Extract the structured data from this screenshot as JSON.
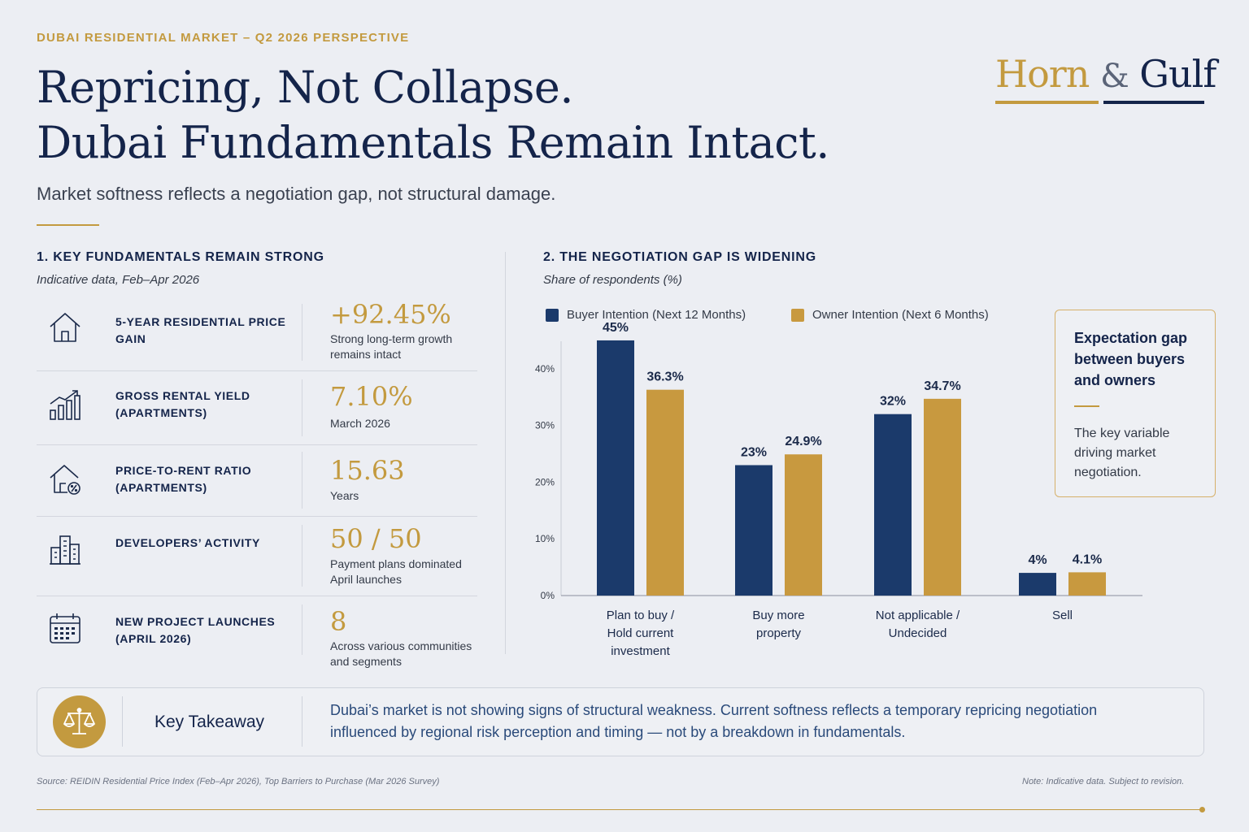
{
  "header": {
    "kicker": "DUBAI RESIDENTIAL MARKET – Q2 2026 PERSPECTIVE",
    "title_line1": "Repricing, Not Collapse.",
    "title_line2": "Dubai Fundamentals Remain Intact.",
    "subtitle": "Market softness reflects a negotiation gap, not structural damage.",
    "logo_word1": "Horn",
    "logo_amp": "&",
    "logo_word2": "Gulf"
  },
  "colors": {
    "navy": "#1b3a6b",
    "gold": "#c8993f",
    "background": "#eceef3"
  },
  "section1": {
    "title": "1. KEY FUNDAMENTALS REMAIN STRONG",
    "subtitle": "Indicative data, Feb–Apr 2026",
    "rows": [
      {
        "icon": "house-icon",
        "label": "5-YEAR RESIDENTIAL PRICE GAIN",
        "value": "+92.45%",
        "note": "Strong long-term growth remains intact"
      },
      {
        "icon": "growth-chart-icon",
        "label": "GROSS RENTAL YIELD (APARTMENTS)",
        "value": "7.10%",
        "note": "March 2026"
      },
      {
        "icon": "house-percent-icon",
        "label": "PRICE-TO-RENT RATIO (APARTMENTS)",
        "value": "15.63",
        "note": "Years"
      },
      {
        "icon": "buildings-icon",
        "label": "DEVELOPERS’ ACTIVITY",
        "value": "50 / 50",
        "note": "Payment plans dominated April launches"
      },
      {
        "icon": "calendar-icon",
        "label": "NEW PROJECT LAUNCHES (APRIL 2026)",
        "value": "8",
        "note": "Across various communities and segments"
      }
    ]
  },
  "section2": {
    "title": "2. THE NEGOTIATION GAP IS WIDENING",
    "subtitle": "Share of respondents (%)",
    "callout_title": "Expectation gap between buyers and owners",
    "callout_body": "The key variable driving market negotiation."
  },
  "chart_data": {
    "type": "bar",
    "categories": [
      [
        "Plan to buy /",
        "Hold current",
        "investment"
      ],
      [
        "Buy more",
        "property"
      ],
      [
        "Not applicable /",
        "Undecided"
      ],
      [
        "Sell"
      ]
    ],
    "series": [
      {
        "name": "Buyer Intention (Next 12 Months)",
        "values": [
          45,
          23,
          32,
          4
        ],
        "labels": [
          "45%",
          "23%",
          "32%",
          "4%"
        ],
        "color": "#1b3a6b"
      },
      {
        "name": "Owner Intention (Next 6 Months)",
        "values": [
          36.3,
          24.9,
          34.7,
          4.1
        ],
        "labels": [
          "36.3%",
          "24.9%",
          "34.7%",
          "4.1%"
        ],
        "color": "#c8993f"
      }
    ],
    "yticks": [
      "0%",
      "10%",
      "20%",
      "30%",
      "40%"
    ],
    "ylim": [
      0,
      47
    ],
    "legend": "top-left",
    "grid": false
  },
  "takeaway": {
    "icon": "scales-icon",
    "label": "Key Takeaway",
    "text": "Dubai’s market is not showing signs of structural weakness. Current softness reflects a temporary repricing negotiation influenced by regional risk perception and timing — not by a breakdown in fundamentals."
  },
  "footer": {
    "source": "Source: REIDIN Residential Price Index (Feb–Apr 2026), Top Barriers to Purchase (Mar 2026 Survey)",
    "note": "Note: Indicative data. Subject to revision."
  }
}
